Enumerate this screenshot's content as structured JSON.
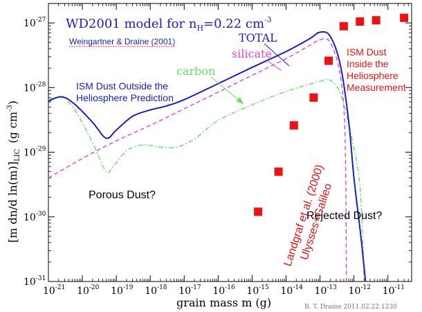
{
  "chart_data": {
    "type": "line",
    "xscale": "log",
    "yscale": "log",
    "xlim": [
      1e-21,
      5e-11
    ],
    "ylim": [
      1e-31,
      2e-27
    ],
    "xlabel": "grain mass m (g)",
    "ylabel": "[m dn/d ln(m)]",
    "ylabel_sub": "LIC",
    "ylabel_unit": "(g cm",
    "ylabel_unit_sup": "-3",
    "ylabel_unit_close": ")",
    "x_ticks": [
      {
        "value": 1e-21,
        "base": "10",
        "exp": "-21"
      },
      {
        "value": 1e-20,
        "base": "10",
        "exp": "-20"
      },
      {
        "value": 1e-19,
        "base": "10",
        "exp": "-19"
      },
      {
        "value": 1e-18,
        "base": "10",
        "exp": "-18"
      },
      {
        "value": 1e-17,
        "base": "10",
        "exp": "-17"
      },
      {
        "value": 1e-16,
        "base": "10",
        "exp": "-16"
      },
      {
        "value": 1e-15,
        "base": "10",
        "exp": "-15"
      },
      {
        "value": 1e-14,
        "base": "10",
        "exp": "-14"
      },
      {
        "value": 1e-13,
        "base": "10",
        "exp": "-13"
      },
      {
        "value": 1e-12,
        "base": "10",
        "exp": "-12"
      },
      {
        "value": 1e-11,
        "base": "10",
        "exp": "-11"
      }
    ],
    "y_ticks": [
      {
        "value": 1e-31,
        "base": "10",
        "exp": "-31"
      },
      {
        "value": 1e-30,
        "base": "10",
        "exp": "-30"
      },
      {
        "value": 1e-29,
        "base": "10",
        "exp": "-29"
      },
      {
        "value": 1e-28,
        "base": "10",
        "exp": "-28"
      },
      {
        "value": 1e-27,
        "base": "10",
        "exp": "-27"
      }
    ],
    "title_prefix": "WD2001 model for n",
    "title_sub": "H",
    "title_suffix": "=0.22 cm",
    "title_sup": "-3",
    "citation": "Weingartner & Draine (2001)",
    "series": [
      {
        "name": "TOTAL",
        "color": "#1a1acc",
        "style": "solid",
        "points": [
          [
            1e-21,
            6.2e-29
          ],
          [
            2.5e-21,
            7.2e-29
          ],
          [
            6e-21,
            5.5e-29
          ],
          [
            2e-20,
            2.9e-29
          ],
          [
            5e-20,
            1.65e-29
          ],
          [
            1e-19,
            2.2e-29
          ],
          [
            3e-19,
            3.6e-29
          ],
          [
            1e-18,
            4.5e-29
          ],
          [
            3e-18,
            5.2e-29
          ],
          [
            1e-17,
            6.5e-29
          ],
          [
            1e-16,
            1.15e-28
          ],
          [
            1e-15,
            2.05e-28
          ],
          [
            1e-14,
            3.6e-28
          ],
          [
            5e-14,
            5.7e-28
          ],
          [
            1e-13,
            7.2e-28
          ],
          [
            2e-13,
            6.2e-28
          ],
          [
            4e-13,
            2.2e-28
          ],
          [
            7e-13,
            3e-29
          ],
          [
            1e-12,
            4e-30
          ],
          [
            1.6e-12,
            5e-31
          ],
          [
            2.2e-12,
            1e-31
          ]
        ]
      },
      {
        "name": "silicate",
        "color": "#dd44dd",
        "style": "dashed",
        "points": [
          [
            1e-21,
            4e-30
          ],
          [
            1e-20,
            8e-30
          ],
          [
            1e-19,
            1.5e-29
          ],
          [
            1e-18,
            2.6e-29
          ],
          [
            1e-17,
            4.7e-29
          ],
          [
            1e-16,
            8.5e-29
          ],
          [
            1e-15,
            1.55e-28
          ],
          [
            1e-14,
            2.8e-28
          ],
          [
            5e-14,
            4.5e-28
          ],
          [
            1e-13,
            5.5e-28
          ],
          [
            2e-13,
            5e-28
          ],
          [
            4e-13,
            1.5e-28
          ],
          [
            5.5e-13,
            1.6e-29
          ],
          [
            6e-13,
            1e-31
          ]
        ]
      },
      {
        "name": "carbon",
        "color": "#66dd66",
        "style": "dashdot",
        "points": [
          [
            1e-21,
            6.5e-29
          ],
          [
            2.5e-21,
            7e-29
          ],
          [
            6e-21,
            4.5e-29
          ],
          [
            2e-20,
            1.4e-29
          ],
          [
            5e-20,
            5e-30
          ],
          [
            8e-20,
            6e-30
          ],
          [
            2e-19,
            1.05e-29
          ],
          [
            6e-19,
            1.3e-29
          ],
          [
            2e-18,
            1.2e-29
          ],
          [
            6e-18,
            1.2e-29
          ],
          [
            2e-17,
            1.6e-29
          ],
          [
            1e-16,
            3.1e-29
          ],
          [
            1e-15,
            5.4e-29
          ],
          [
            1e-14,
            8.7e-29
          ],
          [
            1e-13,
            1.25e-28
          ],
          [
            2e-13,
            1.3e-28
          ],
          [
            4e-13,
            8e-29
          ],
          [
            8e-13,
            2e-29
          ],
          [
            1.5e-12,
            3e-30
          ],
          [
            2e-12,
            1e-31
          ]
        ]
      }
    ],
    "measurements": {
      "name": "ISM Dust Inside the Heliosphere Measurement",
      "color": "#ee1111",
      "points": [
        [
          1.5e-15,
          1.2e-30
        ],
        [
          6e-15,
          5e-30
        ],
        [
          1.7e-14,
          2.6e-29
        ],
        [
          6.5e-14,
          7e-29
        ],
        [
          1.8e-13,
          2.6e-28
        ],
        [
          5e-13,
          8.9e-28
        ],
        [
          1.5e-12,
          1.05e-27
        ],
        [
          4.5e-12,
          1.1e-27
        ],
        [
          3e-11,
          1.2e-27
        ]
      ]
    },
    "annotations": {
      "total": "TOTAL",
      "silicate": "silicate",
      "carbon": "carbon",
      "outside_line1": "ISM Dust Outside the",
      "outside_line2": "Heliosphere Prediction",
      "inside_line1": "ISM Dust",
      "inside_line2": "Inside the",
      "inside_line3": "Heliosphere",
      "inside_line4": "Measurement",
      "porous": "Porous Dust?",
      "rejected": "Rejected Dust?",
      "landgraf_line1": "Landgraf et al. (2000)",
      "landgraf_line2": "Ulysses+Galileo",
      "credit": "B. T. Draine  2011.02.22.1230"
    }
  }
}
